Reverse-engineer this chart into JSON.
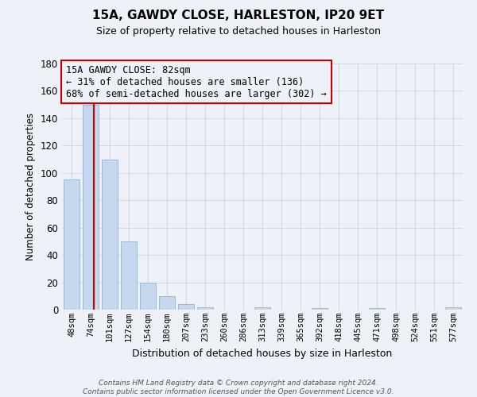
{
  "title": "15A, GAWDY CLOSE, HARLESTON, IP20 9ET",
  "subtitle": "Size of property relative to detached houses in Harleston",
  "xlabel": "Distribution of detached houses by size in Harleston",
  "ylabel": "Number of detached properties",
  "bin_labels": [
    "48sqm",
    "74sqm",
    "101sqm",
    "127sqm",
    "154sqm",
    "180sqm",
    "207sqm",
    "233sqm",
    "260sqm",
    "286sqm",
    "313sqm",
    "339sqm",
    "365sqm",
    "392sqm",
    "418sqm",
    "445sqm",
    "471sqm",
    "498sqm",
    "524sqm",
    "551sqm",
    "577sqm"
  ],
  "bin_values": [
    95,
    150,
    110,
    50,
    20,
    10,
    4,
    2,
    0,
    0,
    2,
    0,
    0,
    1,
    0,
    0,
    1,
    0,
    0,
    0,
    2
  ],
  "bar_color": "#c5d8ed",
  "bar_edgecolor": "#a0b8d0",
  "property_line_x": 1.15,
  "property_line_color": "#cc0000",
  "ylim": [
    0,
    180
  ],
  "yticks": [
    0,
    20,
    40,
    60,
    80,
    100,
    120,
    140,
    160,
    180
  ],
  "annotation_text": "15A GAWDY CLOSE: 82sqm\n← 31% of detached houses are smaller (136)\n68% of semi-detached houses are larger (302) →",
  "annotation_box_edgecolor": "#cc0000",
  "footer_line1": "Contains HM Land Registry data © Crown copyright and database right 2024.",
  "footer_line2": "Contains public sector information licensed under the Open Government Licence v3.0.",
  "grid_color": "#d0d8e8",
  "background_color": "#eef2f8"
}
